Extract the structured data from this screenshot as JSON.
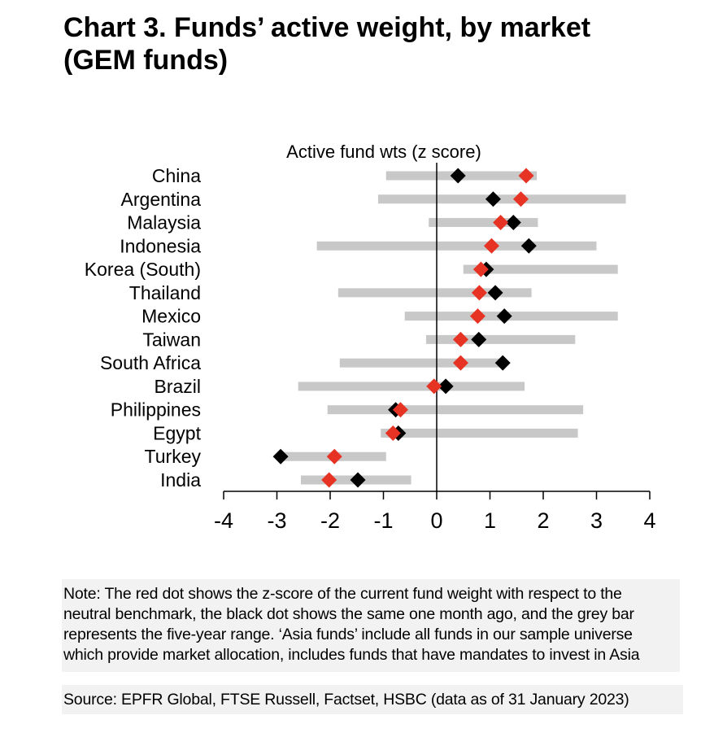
{
  "title": {
    "line1": "Chart 3. Funds’ active weight, by market",
    "line2": "(GEM funds)"
  },
  "colors": {
    "current": "#e63323",
    "previous": "#000000",
    "range": "#c8c8c8"
  },
  "chart_data": {
    "type": "scatter",
    "title": "Active fund wts (z score)",
    "xlim": [
      -4,
      4
    ],
    "xticks": [
      -4,
      -3,
      -2,
      -1,
      0,
      1,
      2,
      3,
      4
    ],
    "categories": [
      "China",
      "Argentina",
      "Malaysia",
      "Indonesia",
      "Korea (South)",
      "Thailand",
      "Mexico",
      "Taiwan",
      "South Africa",
      "Brazil",
      "Philippines",
      "Egypt",
      "Turkey",
      "India"
    ],
    "series": [
      {
        "kind": "range",
        "low": [
          -0.95,
          -1.1,
          -0.15,
          -2.25,
          0.5,
          -1.85,
          -0.6,
          -0.2,
          -1.82,
          -2.6,
          -2.05,
          -1.05,
          -2.98,
          -2.55
        ],
        "high": [
          1.88,
          3.55,
          1.9,
          3.0,
          3.4,
          1.78,
          3.4,
          2.6,
          1.2,
          1.65,
          2.75,
          2.65,
          -0.95,
          -0.48
        ]
      },
      {
        "kind": "current",
        "values": [
          1.68,
          1.58,
          1.2,
          1.03,
          0.83,
          0.8,
          0.77,
          0.45,
          0.45,
          -0.05,
          -0.68,
          -0.82,
          -1.92,
          -2.02
        ]
      },
      {
        "kind": "previous",
        "values": [
          0.4,
          1.06,
          1.44,
          1.73,
          0.93,
          1.1,
          1.27,
          0.79,
          1.24,
          0.17,
          -0.77,
          -0.72,
          -2.93,
          -1.48
        ]
      }
    ]
  },
  "note": {
    "lines": [
      "Note: The red dot shows the z-score of the current fund weight with respect to the",
      "neutral benchmark, the black dot shows the same one month ago, and the grey bar",
      "represents the five-year range. ‘Asia funds’ include all funds in our sample universe",
      "which provide market allocation, includes funds that have mandates to invest in Asia"
    ]
  },
  "source": "Source: EPFR Global, FTSE Russell, Factset, HSBC (data as of 31 January 2023)"
}
